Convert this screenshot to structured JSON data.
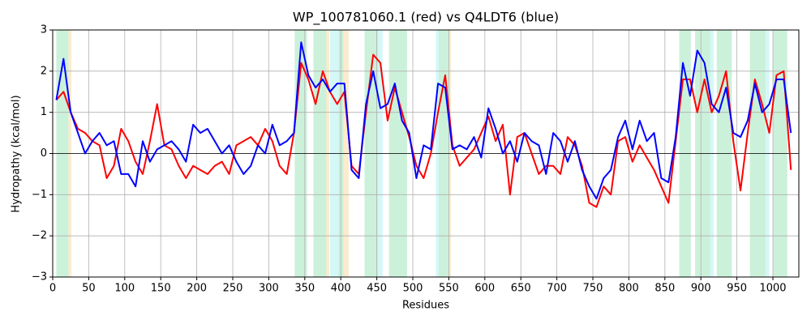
{
  "chart_data": {
    "type": "line",
    "title": "WP_100781060.1 (red) vs Q4LDT6 (blue)",
    "x_label": "Residues",
    "y_label": "Hydropathy (kcal/mol)",
    "xlim": [
      0,
      1036
    ],
    "ylim": [
      -3,
      3
    ],
    "xticks": [
      0,
      50,
      100,
      150,
      200,
      250,
      300,
      350,
      400,
      450,
      500,
      550,
      600,
      650,
      700,
      750,
      800,
      850,
      900,
      950,
      1000
    ],
    "yticks": [
      {
        "value": -3,
        "label": "−3"
      },
      {
        "value": -2,
        "label": "−2"
      },
      {
        "value": -1,
        "label": "−1"
      },
      0,
      1,
      2,
      3
    ],
    "grid": true,
    "hlines": [
      0
    ],
    "regions": [
      {
        "start": 5,
        "end": 22,
        "color": "#c3efd4"
      },
      {
        "start": 22,
        "end": 26,
        "color": "#fde8c4"
      },
      {
        "start": 336,
        "end": 353,
        "color": "#c3efd4"
      },
      {
        "start": 362,
        "end": 380,
        "color": "#c3efd4"
      },
      {
        "start": 380,
        "end": 384,
        "color": "#fde8c4"
      },
      {
        "start": 385,
        "end": 397,
        "color": "#ccf7f7"
      },
      {
        "start": 397,
        "end": 404,
        "color": "#c3efd4"
      },
      {
        "start": 404,
        "end": 411,
        "color": "#fde8c4"
      },
      {
        "start": 433,
        "end": 452,
        "color": "#c3efd4"
      },
      {
        "start": 452,
        "end": 458,
        "color": "#ccf7f7"
      },
      {
        "start": 467,
        "end": 492,
        "color": "#c3efd4"
      },
      {
        "start": 532,
        "end": 536,
        "color": "#ccf7f7"
      },
      {
        "start": 536,
        "end": 550,
        "color": "#c3efd4"
      },
      {
        "start": 550,
        "end": 553,
        "color": "#fde8c4"
      },
      {
        "start": 870,
        "end": 886,
        "color": "#c3efd4"
      },
      {
        "start": 892,
        "end": 913,
        "color": "#c3efd4"
      },
      {
        "start": 913,
        "end": 918,
        "color": "#ccf7f7"
      },
      {
        "start": 922,
        "end": 943,
        "color": "#c3efd4"
      },
      {
        "start": 968,
        "end": 990,
        "color": "#c3efd4"
      },
      {
        "start": 990,
        "end": 995,
        "color": "#ccf7f7"
      },
      {
        "start": 1000,
        "end": 1020,
        "color": "#c3efd4"
      }
    ],
    "x": [
      5,
      15,
      25,
      35,
      45,
      55,
      65,
      75,
      85,
      95,
      105,
      115,
      125,
      135,
      145,
      155,
      165,
      175,
      185,
      195,
      205,
      215,
      225,
      235,
      245,
      255,
      265,
      275,
      285,
      295,
      305,
      315,
      325,
      335,
      345,
      355,
      365,
      375,
      385,
      395,
      405,
      415,
      425,
      435,
      445,
      455,
      465,
      475,
      485,
      495,
      505,
      515,
      525,
      535,
      545,
      555,
      565,
      575,
      585,
      595,
      605,
      615,
      625,
      635,
      645,
      655,
      665,
      675,
      685,
      695,
      705,
      715,
      725,
      735,
      745,
      755,
      765,
      775,
      785,
      795,
      805,
      815,
      825,
      835,
      845,
      855,
      865,
      875,
      885,
      895,
      905,
      915,
      925,
      935,
      945,
      955,
      965,
      975,
      985,
      995,
      1005,
      1015,
      1025
    ],
    "series": [
      {
        "name": "WP_100781060.1",
        "color": "#ff0000",
        "values": [
          1.3,
          1.5,
          1.0,
          0.6,
          0.5,
          0.3,
          0.2,
          -0.6,
          -0.3,
          0.6,
          0.3,
          -0.2,
          -0.5,
          0.3,
          1.2,
          0.2,
          0.1,
          -0.3,
          -0.6,
          -0.3,
          -0.4,
          -0.5,
          -0.3,
          -0.2,
          -0.5,
          0.2,
          0.3,
          0.4,
          0.2,
          0.6,
          0.3,
          -0.3,
          -0.5,
          0.5,
          2.2,
          1.8,
          1.2,
          2.0,
          1.5,
          1.2,
          1.5,
          -0.3,
          -0.5,
          1.0,
          2.4,
          2.2,
          0.8,
          1.6,
          1.0,
          0.4,
          -0.3,
          -0.6,
          0.0,
          1.0,
          1.9,
          0.2,
          -0.3,
          -0.1,
          0.1,
          0.5,
          0.9,
          0.3,
          0.7,
          -1.0,
          0.4,
          0.5,
          0.0,
          -0.5,
          -0.3,
          -0.3,
          -0.5,
          0.4,
          0.2,
          -0.3,
          -1.2,
          -1.3,
          -0.8,
          -1.0,
          0.3,
          0.4,
          -0.2,
          0.2,
          -0.1,
          -0.4,
          -0.8,
          -1.2,
          0.3,
          1.8,
          1.8,
          1.0,
          1.8,
          1.0,
          1.4,
          2.0,
          0.3,
          -0.9,
          0.5,
          1.8,
          1.2,
          0.5,
          1.9,
          2.0,
          -0.4
        ]
      },
      {
        "name": "Q4LDT6",
        "color": "#0000ff",
        "values": [
          1.3,
          2.3,
          1.0,
          0.5,
          0.0,
          0.3,
          0.5,
          0.2,
          0.3,
          -0.5,
          -0.5,
          -0.8,
          0.3,
          -0.2,
          0.1,
          0.2,
          0.3,
          0.1,
          -0.2,
          0.7,
          0.5,
          0.6,
          0.3,
          0.0,
          0.2,
          -0.2,
          -0.5,
          -0.3,
          0.2,
          0.0,
          0.7,
          0.2,
          0.3,
          0.5,
          2.7,
          1.9,
          1.6,
          1.8,
          1.5,
          1.7,
          1.7,
          -0.4,
          -0.6,
          1.2,
          2.0,
          1.1,
          1.2,
          1.7,
          0.8,
          0.5,
          -0.6,
          0.2,
          0.1,
          1.7,
          1.6,
          0.1,
          0.2,
          0.1,
          0.4,
          -0.1,
          1.1,
          0.6,
          0.0,
          0.3,
          -0.2,
          0.5,
          0.3,
          0.2,
          -0.5,
          0.5,
          0.3,
          -0.2,
          0.3,
          -0.4,
          -0.8,
          -1.1,
          -0.6,
          -0.4,
          0.4,
          0.8,
          0.1,
          0.8,
          0.3,
          0.5,
          -0.6,
          -0.7,
          0.4,
          2.2,
          1.4,
          2.5,
          2.2,
          1.2,
          1.0,
          1.6,
          0.5,
          0.4,
          0.8,
          1.7,
          1.0,
          1.2,
          1.8,
          1.8,
          0.5
        ]
      }
    ]
  }
}
